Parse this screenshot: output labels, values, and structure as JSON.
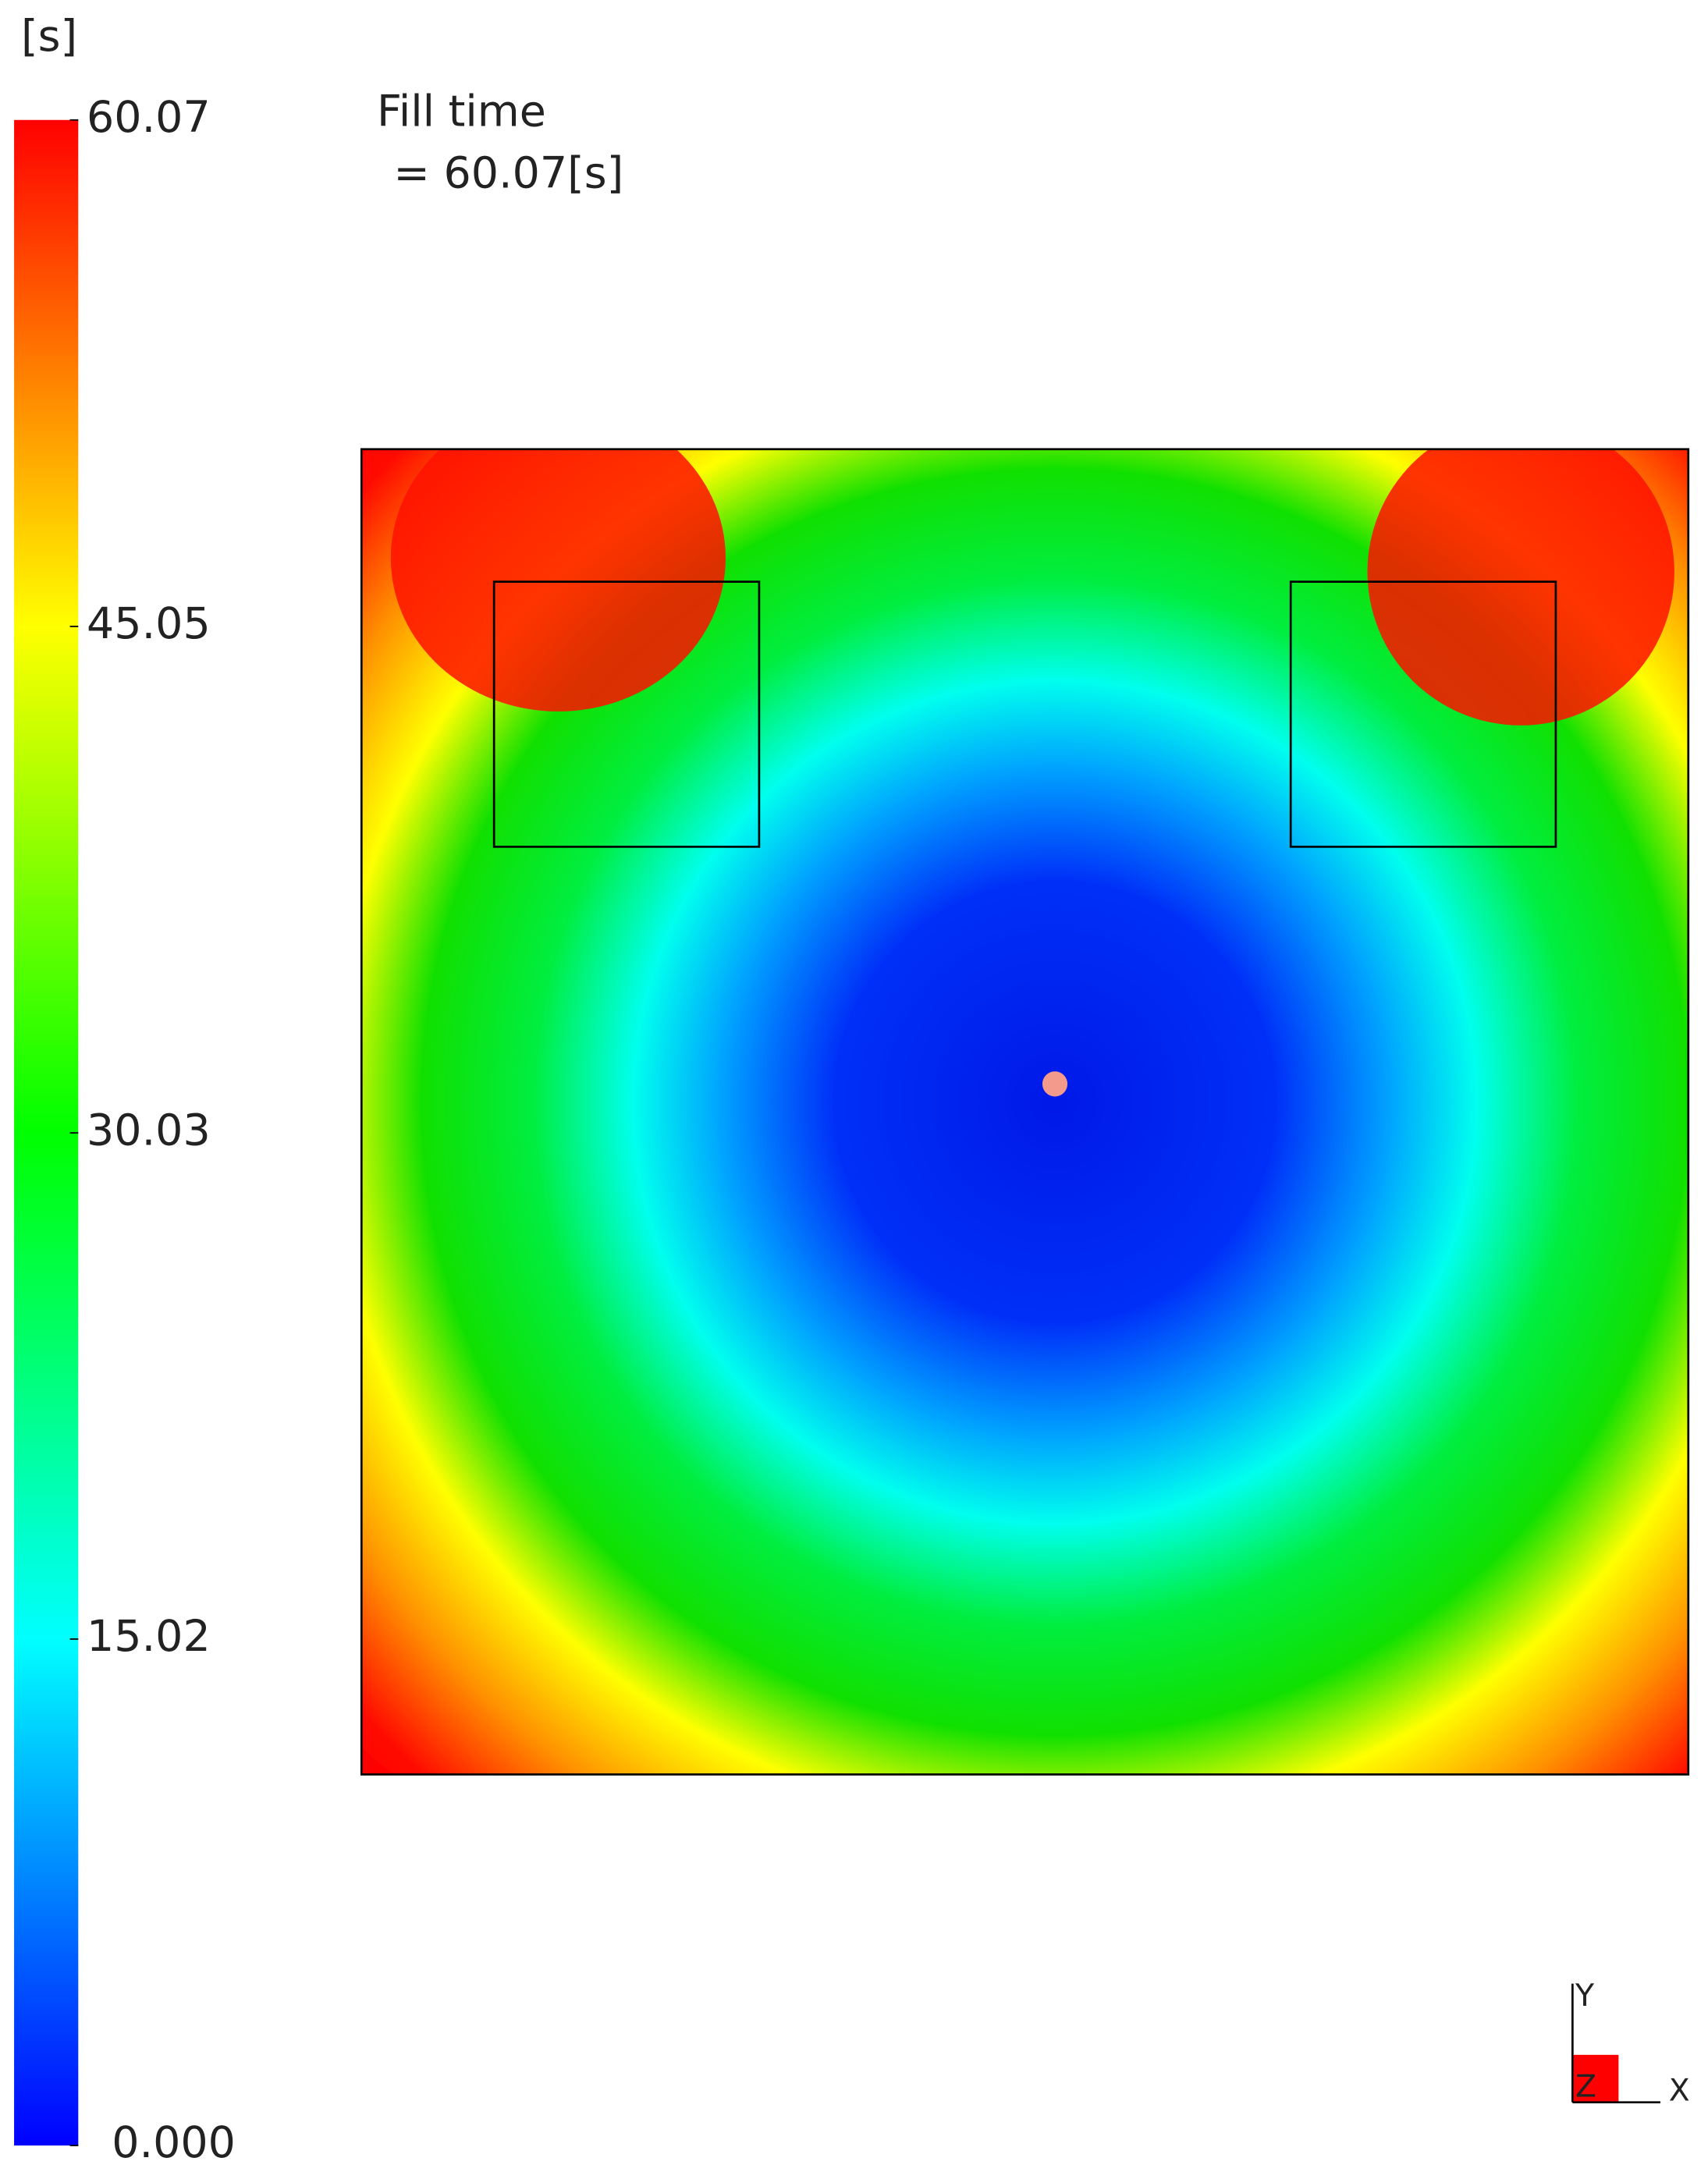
{
  "chart_data": {
    "type": "contour",
    "unit": "[s]",
    "title": "Fill time",
    "annotation": "= 60.07[s]",
    "zlim": [
      0,
      60.07
    ],
    "zticks": [
      {
        "value": 0,
        "label": "0.000"
      },
      15.02,
      30.03,
      45.05,
      60.07
    ],
    "colorscale": [
      "#0000ff",
      "#00ffff",
      "#00ff00",
      "#ffff00",
      "#ff0000"
    ],
    "triad": [
      "Y",
      "Z",
      "X"
    ]
  }
}
